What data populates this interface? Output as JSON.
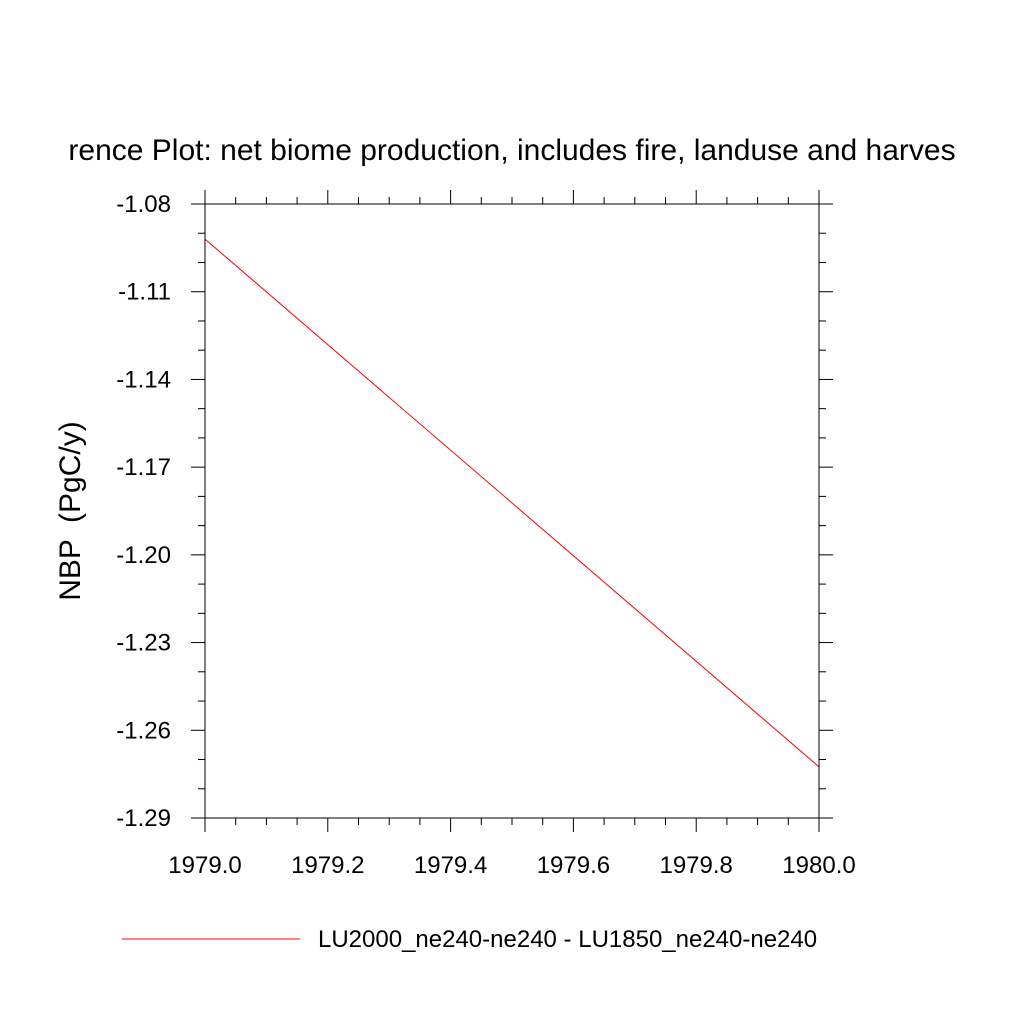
{
  "chart_data": {
    "type": "line",
    "title": "rence Plot: net biome production, includes fire, landuse and harves",
    "xlabel": "",
    "ylabel": "NBP  (PgC/y)",
    "xlim": [
      1979.0,
      1980.0
    ],
    "ylim": [
      -1.29,
      -1.08
    ],
    "xticks": [
      1979.0,
      1979.2,
      1979.4,
      1979.6,
      1979.8,
      1980.0
    ],
    "xtick_labels": [
      "1979.0",
      "1979.2",
      "1979.4",
      "1979.6",
      "1979.8",
      "1980.0"
    ],
    "yticks": [
      -1.08,
      -1.11,
      -1.14,
      -1.17,
      -1.2,
      -1.23,
      -1.26,
      -1.29
    ],
    "ytick_labels": [
      "-1.08",
      "-1.11",
      "-1.14",
      "-1.17",
      "-1.20",
      "-1.23",
      "-1.26",
      "-1.29"
    ],
    "grid": false,
    "legend_position": "bottom",
    "series": [
      {
        "name": "LU2000_ne240-ne240 - LU1850_ne240-ne240",
        "color": "#ff0000",
        "x": [
          1979.0,
          1980.0
        ],
        "y": [
          -1.092,
          -1.2725
        ]
      }
    ]
  }
}
